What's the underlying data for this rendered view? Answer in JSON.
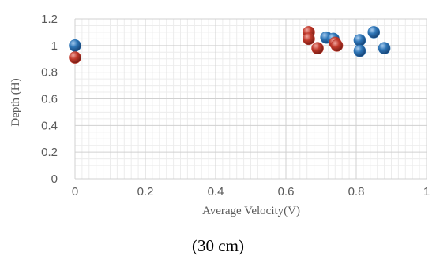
{
  "chart_data": {
    "type": "scatter",
    "title": "",
    "xlabel": "Average Velocity(V)",
    "ylabel": "Depth (H)",
    "xlim": [
      0,
      1
    ],
    "ylim": [
      0,
      1.2
    ],
    "x_ticks": [
      "0",
      "0.2",
      "0.4",
      "0.6",
      "0.8",
      "1"
    ],
    "y_ticks": [
      "0",
      "0.2",
      "0.4",
      "0.6",
      "0.8",
      "1",
      "1.2"
    ],
    "grid": true,
    "series": [
      {
        "color": "#2e75b6",
        "points": [
          {
            "x": 0.0,
            "y": 1.0
          },
          {
            "x": 0.715,
            "y": 1.06
          },
          {
            "x": 0.735,
            "y": 1.05
          },
          {
            "x": 0.81,
            "y": 1.04
          },
          {
            "x": 0.81,
            "y": 0.96
          },
          {
            "x": 0.85,
            "y": 1.1
          },
          {
            "x": 0.88,
            "y": 0.98
          }
        ]
      },
      {
        "color": "#c0392b",
        "points": [
          {
            "x": 0.0,
            "y": 0.91
          },
          {
            "x": 0.665,
            "y": 1.1
          },
          {
            "x": 0.665,
            "y": 1.05
          },
          {
            "x": 0.69,
            "y": 0.98
          },
          {
            "x": 0.74,
            "y": 1.02
          },
          {
            "x": 0.745,
            "y": 1.0
          }
        ]
      }
    ]
  },
  "caption": "(30 cm)"
}
